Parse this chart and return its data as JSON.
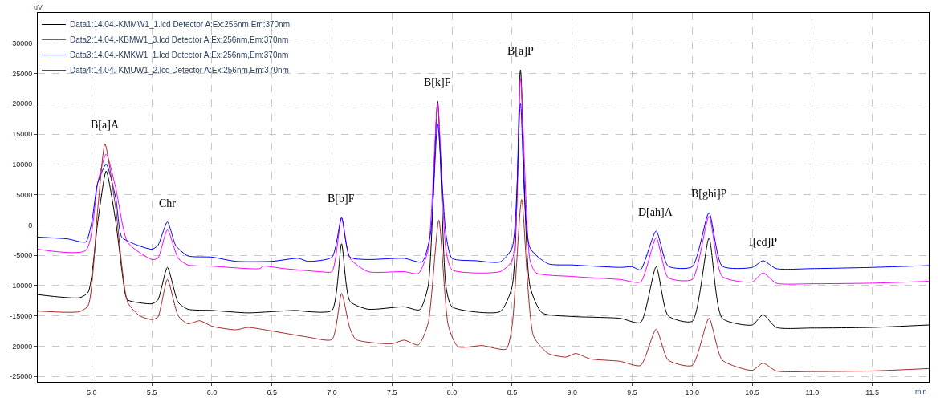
{
  "chart_data": {
    "type": "line",
    "xlabel": "min",
    "ylabel": "uV",
    "xlim": [
      4.55,
      11.97
    ],
    "ylim": [
      -25900,
      35000
    ],
    "xticks": [
      {
        "value": 5,
        "label": "5.0"
      },
      5.5,
      {
        "value": 6,
        "label": "6.0"
      },
      6.5,
      {
        "value": 7,
        "label": "7.0"
      },
      7.5,
      {
        "value": 8,
        "label": "8.0"
      },
      8.5,
      {
        "value": 9,
        "label": "9.0"
      },
      9.5,
      {
        "value": 10,
        "label": "10.0"
      },
      10.5,
      {
        "value": 11,
        "label": "11.0"
      },
      11.5
    ],
    "yticks": [
      -25000,
      -20000,
      -15000,
      -10000,
      -5000,
      0,
      5000,
      10000,
      15000,
      20000,
      25000,
      30000
    ],
    "grid": true,
    "legend": "top left",
    "marker": "none",
    "line_style": "solid",
    "series": [
      {
        "name": "Data1:14.04.-KMMW1_1.lcd Detector A:Ex:256nm,Em:370nm",
        "color": "#000000",
        "x": [
          4.55,
          4.9,
          4.97,
          5.05,
          5.12,
          5.2,
          5.28,
          5.3,
          5.5,
          5.55,
          5.63,
          5.72,
          5.8,
          6.0,
          6.3,
          6.7,
          6.8,
          7.0,
          7.08,
          7.15,
          7.3,
          7.6,
          7.73,
          7.8,
          7.88,
          7.95,
          8.0,
          8.4,
          8.5,
          8.57,
          8.65,
          8.75,
          9.0,
          9.4,
          9.57,
          9.7,
          9.8,
          10.0,
          10.14,
          10.25,
          10.5,
          10.59,
          10.7,
          11.0,
          11.5,
          11.97
        ],
        "values": [
          -11500,
          -12000,
          -11100,
          500,
          8900,
          500,
          -11500,
          -12400,
          -13000,
          -12400,
          -7000,
          -12800,
          -13900,
          -14100,
          -14500,
          -14100,
          -14300,
          -14100,
          -3100,
          -12600,
          -13900,
          -13500,
          -14000,
          -10200,
          20400,
          -10200,
          -13500,
          -14300,
          -10200,
          25600,
          -10200,
          -14500,
          -15100,
          -15400,
          -16100,
          -6900,
          -15000,
          -15900,
          -2200,
          -15400,
          -16500,
          -14800,
          -16900,
          -17000,
          -16900,
          -16500
        ]
      },
      {
        "name": "Data2:14.04.-KBMW1_3.lcd Detector A:Ex:256nm,Em:370nm",
        "color": "#ff00ff",
        "x": [
          4.55,
          4.95,
          5.05,
          5.12,
          5.2,
          5.3,
          5.5,
          5.55,
          5.63,
          5.72,
          5.8,
          6.0,
          6.4,
          6.43,
          6.6,
          6.9,
          7.0,
          7.08,
          7.15,
          7.3,
          7.6,
          7.72,
          7.8,
          7.88,
          7.95,
          8.0,
          8.4,
          8.5,
          8.57,
          8.65,
          8.7,
          9.0,
          9.4,
          9.57,
          9.7,
          9.8,
          10.0,
          10.14,
          10.25,
          10.5,
          10.59,
          10.7,
          11.0,
          11.5,
          11.97
        ],
        "values": [
          -4000,
          -4200,
          7000,
          11700,
          6100,
          -2900,
          -5700,
          -5500,
          -800,
          -5500,
          -6600,
          -6800,
          -7200,
          -6800,
          -7200,
          -7700,
          -7700,
          1200,
          -5500,
          -7700,
          -7700,
          -8000,
          -4200,
          20000,
          -4200,
          -7400,
          -7700,
          -5900,
          24200,
          -5900,
          -7900,
          -8500,
          -9000,
          -9400,
          -2100,
          -8700,
          -9000,
          1400,
          -8500,
          -9400,
          -7900,
          -9600,
          -9700,
          -9600,
          -9300
        ]
      },
      {
        "name": "Data3:14.04.-KMKW1_1.lcd Detector A:Ex:256nm,Em:370nm",
        "color": "#0000ff",
        "x": [
          4.55,
          4.8,
          4.95,
          5.0,
          5.05,
          5.12,
          5.2,
          5.25,
          5.35,
          5.5,
          5.55,
          5.63,
          5.7,
          5.8,
          6.0,
          6.2,
          6.5,
          6.72,
          6.8,
          7.0,
          7.08,
          7.15,
          7.3,
          7.6,
          7.75,
          7.82,
          7.88,
          7.95,
          8.0,
          8.2,
          8.4,
          8.5,
          8.57,
          8.65,
          8.8,
          9.0,
          9.4,
          9.5,
          9.57,
          9.7,
          9.8,
          10.0,
          10.14,
          10.25,
          10.5,
          10.59,
          10.7,
          11.0,
          11.5,
          11.97
        ],
        "values": [
          -2000,
          -2300,
          -2800,
          500,
          7000,
          10000,
          4400,
          -2000,
          -3100,
          -4000,
          -3400,
          500,
          -3400,
          -5100,
          -5300,
          -6000,
          -6000,
          -5500,
          -6000,
          -5300,
          1200,
          -5300,
          -5700,
          -5500,
          -6100,
          -1600,
          16700,
          -1600,
          -5500,
          -5900,
          -6100,
          -3800,
          20100,
          -3800,
          -6400,
          -6600,
          -7000,
          -6900,
          -7400,
          -1000,
          -6800,
          -6900,
          2000,
          -6800,
          -7000,
          -5900,
          -7200,
          -7200,
          -7000,
          -6700
        ]
      },
      {
        "name": "Data4:14.04.-KMUW1_2.lcd Detector A:Ex:256nm,Em:370nm",
        "color": "#a52a2a",
        "x": [
          4.55,
          4.9,
          4.97,
          5.05,
          5.11,
          5.2,
          5.3,
          5.4,
          5.5,
          5.55,
          5.63,
          5.72,
          5.8,
          5.9,
          6.0,
          6.2,
          6.3,
          6.5,
          6.8,
          7.0,
          7.08,
          7.15,
          7.2,
          7.5,
          7.6,
          7.72,
          7.8,
          7.89,
          7.97,
          8.05,
          8.25,
          8.45,
          8.5,
          8.58,
          8.68,
          8.8,
          8.95,
          9.03,
          9.15,
          9.4,
          9.57,
          9.7,
          9.8,
          10.0,
          10.14,
          10.25,
          10.5,
          10.59,
          10.7,
          11.0,
          11.5,
          11.97
        ],
        "values": [
          -14200,
          -14300,
          -13300,
          2700,
          13400,
          2700,
          -12800,
          -15000,
          -15600,
          -15200,
          -9000,
          -15000,
          -16300,
          -15800,
          -16700,
          -17300,
          -16900,
          -17500,
          -18500,
          -18900,
          -11300,
          -17100,
          -18900,
          -19600,
          -19000,
          -19800,
          -16300,
          800,
          -16700,
          -20100,
          -19900,
          -20500,
          -16700,
          4200,
          -18400,
          -21200,
          -21800,
          -21200,
          -22100,
          -22500,
          -23200,
          -17200,
          -22300,
          -23200,
          -15400,
          -22300,
          -24000,
          -22800,
          -24100,
          -24200,
          -24100,
          -23700
        ]
      }
    ],
    "annotations": [
      {
        "text": "B[a]A",
        "x": 5.11,
        "y": 13400
      },
      {
        "text": "Chr",
        "x": 5.63,
        "y": 500
      },
      {
        "text": "B[b]F",
        "x": 7.08,
        "y": 1200
      },
      {
        "text": "B[k]F",
        "x": 7.88,
        "y": 20400
      },
      {
        "text": "B[a]P",
        "x": 8.57,
        "y": 25600
      },
      {
        "text": "D[ah]A",
        "x": 9.7,
        "y": -1000
      },
      {
        "text": "B[ghi]P",
        "x": 10.14,
        "y": 2000
      },
      {
        "text": "I[cd]P",
        "x": 10.59,
        "y": -5900
      }
    ]
  }
}
